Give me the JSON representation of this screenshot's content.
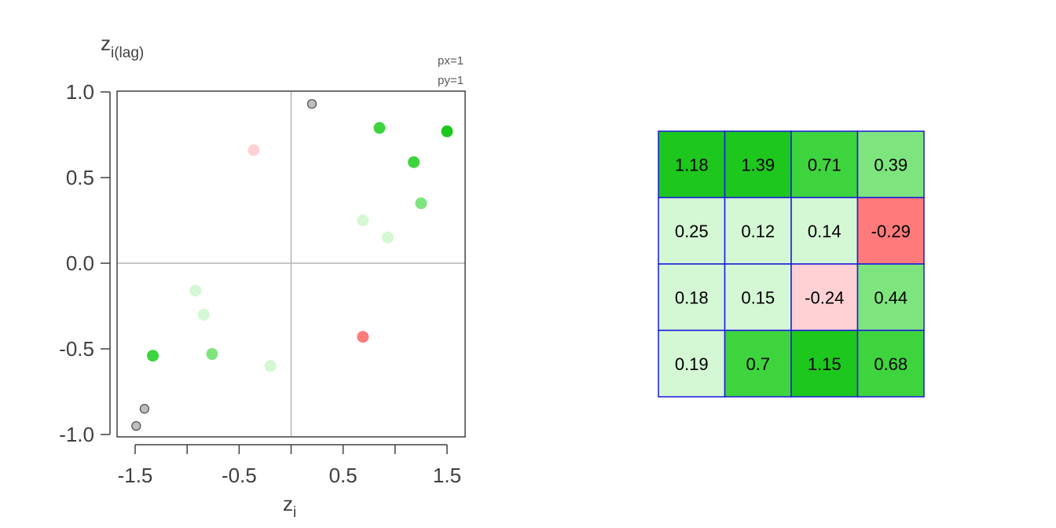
{
  "chart_data": [
    {
      "type": "scatter",
      "title": "",
      "xlabel": "z",
      "xlabel_sub": "i",
      "ylabel": "z",
      "ylabel_sub": "i(lag)",
      "annotation": [
        "px=1",
        "py=1"
      ],
      "xlim": [
        -1.5,
        1.5
      ],
      "ylim": [
        -1.0,
        1.0
      ],
      "xticks": [
        -1.5,
        -1.0,
        -0.5,
        0.0,
        0.5,
        1.0,
        1.5
      ],
      "xtick_labels": [
        "-1.5",
        "",
        "-0.5",
        "",
        "0.5",
        "",
        "1.5"
      ],
      "yticks": [
        1.0,
        0.5,
        0.0,
        -0.5,
        -1.0
      ],
      "ytick_labels": [
        "1.0",
        "0.5",
        "0.0",
        "-0.5",
        "-1.0"
      ],
      "reference_lines": {
        "x": 0,
        "y": 0
      },
      "grid": false,
      "points": [
        {
          "x": 0.2,
          "y": 0.93,
          "color": "#bebebe",
          "outlined": true
        },
        {
          "x": 0.85,
          "y": 0.79,
          "color": "#bebebe",
          "outlined": true
        },
        {
          "x": 0.85,
          "y": 0.79,
          "color": "#3ed43e",
          "outlined": false
        },
        {
          "x": 1.5,
          "y": 0.77,
          "color": "#1dc71d",
          "outlined": false
        },
        {
          "x": -0.36,
          "y": 0.66,
          "color": "#ffd1d5",
          "outlined": false
        },
        {
          "x": 1.18,
          "y": 0.59,
          "color": "#3ed43e",
          "outlined": false
        },
        {
          "x": 1.25,
          "y": 0.35,
          "color": "#7ee57e",
          "outlined": false
        },
        {
          "x": 0.69,
          "y": 0.25,
          "color": "#d4f7d4",
          "outlined": false
        },
        {
          "x": 0.93,
          "y": 0.15,
          "color": "#d4f7d4",
          "outlined": false
        },
        {
          "x": -0.92,
          "y": -0.16,
          "color": "#d4f7d4",
          "outlined": false
        },
        {
          "x": -0.84,
          "y": -0.3,
          "color": "#d4f7d4",
          "outlined": false
        },
        {
          "x": 0.69,
          "y": -0.43,
          "color": "#ff7b7b",
          "outlined": false
        },
        {
          "x": -0.76,
          "y": -0.53,
          "color": "#7ee57e",
          "outlined": false
        },
        {
          "x": -1.33,
          "y": -0.54,
          "color": "#3ed43e",
          "outlined": false
        },
        {
          "x": -0.2,
          "y": -0.6,
          "color": "#d4f7d4",
          "outlined": false
        },
        {
          "x": -1.41,
          "y": -0.85,
          "color": "#bebebe",
          "outlined": true
        },
        {
          "x": -1.49,
          "y": -0.95,
          "color": "#bebebe",
          "outlined": true
        }
      ]
    },
    {
      "type": "heatmap",
      "title": "",
      "rows": 4,
      "cols": 4,
      "border_color": "#1a1adb",
      "cells": [
        [
          {
            "value": "1.18",
            "color": "#1dc71d"
          },
          {
            "value": "1.39",
            "color": "#1dc71d"
          },
          {
            "value": "0.71",
            "color": "#3ed43e"
          },
          {
            "value": "0.39",
            "color": "#7ee57e"
          }
        ],
        [
          {
            "value": "0.25",
            "color": "#d4f7d4"
          },
          {
            "value": "0.12",
            "color": "#d4f7d4"
          },
          {
            "value": "0.14",
            "color": "#d4f7d4"
          },
          {
            "value": "-0.29",
            "color": "#ff7b7b"
          }
        ],
        [
          {
            "value": "0.18",
            "color": "#d4f7d4"
          },
          {
            "value": "0.15",
            "color": "#d4f7d4"
          },
          {
            "value": "-0.24",
            "color": "#ffd1d5"
          },
          {
            "value": "0.44",
            "color": "#7ee57e"
          }
        ],
        [
          {
            "value": "0.19",
            "color": "#d4f7d4"
          },
          {
            "value": "0.7",
            "color": "#3ed43e"
          },
          {
            "value": "1.15",
            "color": "#1dc71d"
          },
          {
            "value": "0.68",
            "color": "#3ed43e"
          }
        ]
      ]
    }
  ]
}
